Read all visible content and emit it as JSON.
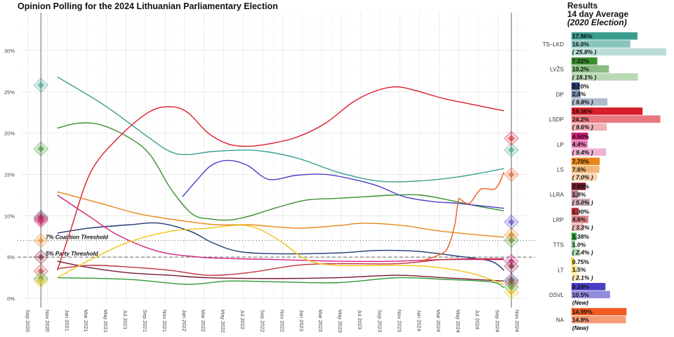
{
  "title": "Opinion Polling for the 2024 Lithuanian Parliamentary Election",
  "results_header": {
    "line1": "Results",
    "line2": "14 day Average",
    "line3": "(2020 Election)"
  },
  "chart_data": {
    "type": "line",
    "title": "Opinion Polling for the 2024 Lithuanian Parliamentary Election",
    "ylim": [
      0,
      33
    ],
    "yticks": [
      0,
      5,
      10,
      15,
      20,
      25,
      30
    ],
    "ytick_labels": [
      "0%",
      "5%",
      "10%",
      "15%",
      "20%",
      "25%",
      "30%"
    ],
    "xlim": [
      "2020-08-15",
      "2024-12-01"
    ],
    "xticks": [
      "2020-09-01",
      "2020-11-01",
      "2021-01-01",
      "2021-03-01",
      "2021-05-01",
      "2021-07-01",
      "2021-09-01",
      "2021-11-01",
      "2022-01-01",
      "2022-03-01",
      "2022-05-01",
      "2022-07-01",
      "2022-09-01",
      "2022-11-01",
      "2023-01-01",
      "2023-03-01",
      "2023-05-01",
      "2023-07-01",
      "2023-09-01",
      "2023-11-01",
      "2024-01-01",
      "2024-03-01",
      "2024-05-01",
      "2024-07-01",
      "2024-09-01",
      "2024-11-01"
    ],
    "xtick_labels": [
      "Sep 2020",
      "Nov 2020",
      "Jan 2021",
      "Mar 2021",
      "May 2021",
      "Jul 2021",
      "Sep 2021",
      "Nov 2021",
      "Jan 2022",
      "Mar 2022",
      "May 2022",
      "Jul 2022",
      "Sep 2022",
      "Nov 2022",
      "Jan 2023",
      "Mar 2023",
      "May 2023",
      "Jul 2023",
      "Sep 2023",
      "Nov 2023",
      "Jan 2024",
      "Mar 2024",
      "May 2024",
      "Jul 2024",
      "Sep 2024",
      "Nov 2024"
    ],
    "grid": true,
    "election_dates": [
      "2020-10-11",
      "2024-10-13"
    ],
    "thresholds": [
      {
        "value": 7,
        "label": "7% Coalition Threshold",
        "style": "dotted"
      },
      {
        "value": 5,
        "label": "5% Party Threshold",
        "style": "dashed"
      }
    ],
    "series": [
      {
        "name": "TS–LKD",
        "color": "#3a9e8f",
        "result_2024": 17.96,
        "avg14": 16.0,
        "result_2020": 25.8,
        "label_2024": "17.96%",
        "label_avg": "16.0%",
        "label_2020": "( 25.8% )",
        "trend": [
          [
            "2020-12-01",
            26.8
          ],
          [
            "2021-04-25",
            23.4
          ],
          [
            "2021-09-10",
            19.5
          ],
          [
            "2021-11-15",
            17.8
          ],
          [
            "2022-01-10",
            17.4
          ],
          [
            "2022-04-05",
            17.8
          ],
          [
            "2022-08-10",
            17.9
          ],
          [
            "2022-12-15",
            17.0
          ],
          [
            "2023-04-20",
            15.3
          ],
          [
            "2023-08-25",
            14.2
          ],
          [
            "2023-12-25",
            14.2
          ],
          [
            "2024-05-01",
            14.7
          ],
          [
            "2024-09-20",
            15.7
          ]
        ]
      },
      {
        "name": "LVŽS",
        "color": "#3a8f2e",
        "result_2024": 7.02,
        "avg14": 10.2,
        "result_2020": 18.1,
        "label_2024": "7.02%",
        "label_avg": "10.2%",
        "label_2020": "( 18.1% )",
        "trend": [
          [
            "2020-12-01",
            20.6
          ],
          [
            "2021-02-05",
            21.2
          ],
          [
            "2021-04-15",
            21.0
          ],
          [
            "2021-07-10",
            19.5
          ],
          [
            "2021-09-15",
            17.4
          ],
          [
            "2021-11-20",
            13.2
          ],
          [
            "2022-01-25",
            10.2
          ],
          [
            "2022-03-25",
            9.6
          ],
          [
            "2022-05-25",
            9.5
          ],
          [
            "2022-07-25",
            10.0
          ],
          [
            "2022-10-15",
            11.0
          ],
          [
            "2023-01-15",
            11.9
          ],
          [
            "2023-04-20",
            12.1
          ],
          [
            "2023-07-15",
            12.3
          ],
          [
            "2023-10-10",
            12.5
          ],
          [
            "2024-01-05",
            12.5
          ],
          [
            "2024-04-01",
            11.9
          ],
          [
            "2024-06-25",
            11.2
          ],
          [
            "2024-09-20",
            10.6
          ]
        ]
      },
      {
        "name": "DP",
        "color": "#1f3a6e",
        "result_2024": 2.2,
        "avg14": 2.4,
        "result_2020": 9.8,
        "label_2024": "2.20%",
        "label_avg": "2.4%",
        "label_2020": "( 9.8% )",
        "trend": [
          [
            "2020-12-01",
            7.9
          ],
          [
            "2021-03-10",
            8.5
          ],
          [
            "2021-07-10",
            8.9
          ],
          [
            "2021-10-15",
            9.1
          ],
          [
            "2022-01-20",
            8.1
          ],
          [
            "2022-03-25",
            6.8
          ],
          [
            "2022-06-15",
            5.7
          ],
          [
            "2022-10-15",
            5.4
          ],
          [
            "2023-04-20",
            5.5
          ],
          [
            "2023-08-25",
            5.8
          ],
          [
            "2023-12-25",
            5.7
          ],
          [
            "2024-05-01",
            5.1
          ],
          [
            "2024-08-10",
            4.5
          ],
          [
            "2024-09-20",
            3.4
          ]
        ]
      },
      {
        "name": "LSDP",
        "color": "#d81e2a",
        "result_2024": 19.36,
        "avg14": 24.2,
        "result_2020": 9.6,
        "label_2024": "19.36%",
        "label_avg": "24.2%",
        "label_2020": "( 9.6% )",
        "trend": [
          [
            "2020-12-01",
            3.4
          ],
          [
            "2021-01-10",
            8.1
          ],
          [
            "2021-03-15",
            15.3
          ],
          [
            "2021-06-10",
            19.5
          ],
          [
            "2021-09-10",
            22.5
          ],
          [
            "2021-11-15",
            23.2
          ],
          [
            "2022-01-10",
            22.5
          ],
          [
            "2022-03-15",
            20.0
          ],
          [
            "2022-05-15",
            18.7
          ],
          [
            "2022-07-15",
            18.4
          ],
          [
            "2022-09-20",
            18.7
          ],
          [
            "2022-12-15",
            19.5
          ],
          [
            "2023-03-15",
            21.2
          ],
          [
            "2023-06-10",
            23.8
          ],
          [
            "2023-08-25",
            25.2
          ],
          [
            "2023-10-25",
            25.6
          ],
          [
            "2023-12-25",
            25.1
          ],
          [
            "2024-03-15",
            24.2
          ],
          [
            "2024-06-10",
            23.5
          ],
          [
            "2024-09-20",
            22.7
          ]
        ]
      },
      {
        "name": "LP",
        "color": "#d4207a",
        "result_2024": 4.5,
        "avg14": 4.4,
        "result_2020": 9.4,
        "label_2024": "4.50%",
        "label_avg": "4.4%",
        "label_2020": "( 9.4% )",
        "trend": [
          [
            "2020-12-01",
            12.5
          ],
          [
            "2021-03-15",
            9.8
          ],
          [
            "2021-06-10",
            7.6
          ],
          [
            "2021-10-10",
            5.7
          ],
          [
            "2022-02-15",
            5.0
          ],
          [
            "2022-06-15",
            4.8
          ],
          [
            "2022-10-15",
            4.7
          ],
          [
            "2023-04-20",
            4.5
          ],
          [
            "2023-10-25",
            4.5
          ],
          [
            "2024-03-15",
            4.7
          ],
          [
            "2024-09-20",
            4.7
          ]
        ]
      },
      {
        "name": "LS",
        "color": "#e8861a",
        "result_2024": 7.7,
        "avg14": 7.6,
        "result_2020": 7.0,
        "label_2024": "7.70%",
        "label_avg": "7.6%",
        "label_2020": "( 7.0% )",
        "trend": [
          [
            "2020-12-01",
            12.9
          ],
          [
            "2021-04-15",
            11.5
          ],
          [
            "2021-08-15",
            10.2
          ],
          [
            "2022-01-10",
            9.3
          ],
          [
            "2022-04-15",
            8.9
          ],
          [
            "2022-07-25",
            8.9
          ],
          [
            "2022-12-15",
            8.5
          ],
          [
            "2023-04-20",
            8.8
          ],
          [
            "2023-07-15",
            9.1
          ],
          [
            "2023-11-15",
            8.8
          ],
          [
            "2024-03-15",
            8.1
          ],
          [
            "2024-09-20",
            7.4
          ]
        ]
      },
      {
        "name": "LLRA",
        "color": "#7a1a2e",
        "result_2024": 3.89,
        "avg14": 1.8,
        "result_2020": 5.0,
        "label_2024": "3.89%",
        "label_avg": "1.8%",
        "label_2020": "( 5.0% )",
        "trend": [
          [
            "2020-12-01",
            4.5
          ],
          [
            "2021-03-15",
            3.7
          ],
          [
            "2021-07-10",
            3.1
          ],
          [
            "2021-11-15",
            2.8
          ],
          [
            "2022-03-15",
            2.5
          ],
          [
            "2022-10-15",
            2.4
          ],
          [
            "2023-04-20",
            2.5
          ],
          [
            "2023-10-25",
            2.8
          ],
          [
            "2024-03-15",
            2.5
          ],
          [
            "2024-09-20",
            2.1
          ]
        ]
      },
      {
        "name": "LRP",
        "color": "#c0343c",
        "result_2024": 1.9,
        "avg14": 4.6,
        "result_2020": 3.3,
        "label_2024": "1.90%",
        "label_avg": "4.6%",
        "label_2020": "( 3.3% )",
        "trend": [
          [
            "2020-12-01",
            3.6
          ],
          [
            "2021-03-15",
            4.0
          ],
          [
            "2021-07-10",
            3.8
          ],
          [
            "2021-11-15",
            3.4
          ],
          [
            "2022-03-15",
            2.8
          ],
          [
            "2022-07-15",
            3.1
          ],
          [
            "2022-12-15",
            4.0
          ],
          [
            "2023-04-20",
            4.2
          ],
          [
            "2023-10-25",
            4.2
          ],
          [
            "2024-03-15",
            4.7
          ],
          [
            "2024-08-10",
            4.8
          ],
          [
            "2024-09-20",
            4.8
          ]
        ]
      },
      {
        "name": "TTS",
        "color": "#2e9a3a",
        "result_2024": 1.38,
        "avg14": 1.0,
        "result_2020": 2.4,
        "label_2024": "1.38%",
        "label_avg": "1.0%",
        "label_2020": "( 2.4% )",
        "trend": [
          [
            "2020-12-01",
            2.5
          ],
          [
            "2021-07-10",
            2.3
          ],
          [
            "2022-01-10",
            1.7
          ],
          [
            "2022-05-15",
            2.1
          ],
          [
            "2022-10-15",
            2.0
          ],
          [
            "2023-04-20",
            1.9
          ],
          [
            "2023-10-25",
            2.5
          ],
          [
            "2024-03-15",
            2.3
          ],
          [
            "2024-08-10",
            2.0
          ],
          [
            "2024-09-20",
            1.3
          ]
        ]
      },
      {
        "name": "LT",
        "color": "#f0c419",
        "result_2024": 0.75,
        "avg14": 1.5,
        "result_2020": 2.1,
        "label_2024": "0.75%",
        "label_avg": "1.5%",
        "label_2020": "( 2.1% )",
        "trend": [
          [
            "2020-12-01",
            2.5
          ],
          [
            "2021-03-15",
            4.7
          ],
          [
            "2021-07-10",
            6.8
          ],
          [
            "2021-11-15",
            8.1
          ],
          [
            "2022-03-15",
            8.5
          ],
          [
            "2022-07-15",
            8.8
          ],
          [
            "2022-10-15",
            7.2
          ],
          [
            "2023-01-15",
            4.7
          ],
          [
            "2023-04-20",
            4.0
          ],
          [
            "2023-10-25",
            4.0
          ],
          [
            "2024-02-15",
            3.8
          ],
          [
            "2024-06-15",
            3.0
          ],
          [
            "2024-09-20",
            1.7
          ]
        ]
      },
      {
        "name": "DSVL",
        "color": "#4a3fc7",
        "result_2024": 9.24,
        "avg14": 10.5,
        "result_2020": null,
        "label_2024": "9.24%",
        "label_avg": "10.5%",
        "label_2020": "(New)",
        "trend": [
          [
            "2021-12-25",
            12.3
          ],
          [
            "2022-02-10",
            14.4
          ],
          [
            "2022-03-25",
            16.1
          ],
          [
            "2022-05-15",
            16.7
          ],
          [
            "2022-07-15",
            16.1
          ],
          [
            "2022-09-20",
            14.4
          ],
          [
            "2022-12-15",
            14.9
          ],
          [
            "2023-03-15",
            15.0
          ],
          [
            "2023-06-10",
            14.4
          ],
          [
            "2023-08-25",
            13.6
          ],
          [
            "2023-11-15",
            12.3
          ],
          [
            "2024-02-15",
            11.7
          ],
          [
            "2024-05-01",
            11.5
          ],
          [
            "2024-09-20",
            10.9
          ]
        ]
      },
      {
        "name": "NA",
        "color": "#f05a1e",
        "result_2024": 14.99,
        "avg14": 14.8,
        "result_2020": null,
        "label_2024": "14.99%",
        "label_avg": "14.8%",
        "label_2020": "(New)",
        "trend": [
          [
            "2024-01-05",
            4.5
          ],
          [
            "2024-03-10",
            5.4
          ],
          [
            "2024-04-01",
            6.4
          ],
          [
            "2024-04-20",
            8.9
          ],
          [
            "2024-05-01",
            11.9
          ],
          [
            "2024-05-10",
            11.9
          ],
          [
            "2024-06-05",
            11.5
          ],
          [
            "2024-07-10",
            13.2
          ],
          [
            "2024-08-25",
            13.3
          ],
          [
            "2024-09-20",
            15.3
          ]
        ]
      }
    ]
  }
}
